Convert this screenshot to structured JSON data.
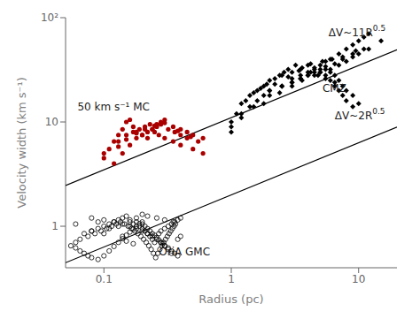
{
  "chart_data": {
    "type": "scatter",
    "xlabel": "Radius (pc)",
    "ylabel": "Velocity width (km s⁻¹)",
    "log": true,
    "grid": false,
    "xlim": [
      0.05,
      20
    ],
    "ylim": [
      0.4,
      100
    ],
    "xticks": [
      0.1,
      1,
      10
    ],
    "yticks": [
      1,
      10,
      {
        "value": 100,
        "label": "10²"
      }
    ],
    "series": [
      {
        "type": "line",
        "color": "#000000",
        "line_style": "solid",
        "x": [
          0.05,
          20
        ],
        "values": [
          2.45967477525,
          49.193495505
        ]
      },
      {
        "type": "line",
        "color": "#000000",
        "line_style": "solid",
        "x": [
          0.05,
          20
        ],
        "values": [
          0.4472135955,
          8.94427191
        ]
      },
      {
        "type": "scatter",
        "marker": "open circle",
        "color": "#000000",
        "x": [
          0.07,
          0.08,
          0.09,
          0.1,
          0.11,
          0.12,
          0.13,
          0.14,
          0.15,
          0.16,
          0.17,
          0.18,
          0.19,
          0.2,
          0.21,
          0.22,
          0.23,
          0.24,
          0.25,
          0.27,
          0.28,
          0.3,
          0.32,
          0.34,
          0.36,
          0.38,
          0.4,
          0.06,
          0.065,
          0.075,
          0.085,
          0.095,
          0.105,
          0.115,
          0.125,
          0.135,
          0.145,
          0.155,
          0.165,
          0.175,
          0.185,
          0.195,
          0.205,
          0.215,
          0.225,
          0.235,
          0.245,
          0.255,
          0.265,
          0.275,
          0.285,
          0.295,
          0.305,
          0.315,
          0.325,
          0.335,
          0.345,
          0.355,
          0.365,
          0.08,
          0.1,
          0.12,
          0.14,
          0.16,
          0.18,
          0.2,
          0.22,
          0.24,
          0.26,
          0.28,
          0.3,
          0.32,
          0.34,
          0.2,
          0.22,
          0.26,
          0.3,
          0.35,
          0.13,
          0.11,
          0.08,
          0.1,
          0.14,
          0.16,
          0.18,
          0.2,
          0.06,
          0.09,
          0.38,
          0.4,
          0.15,
          0.17,
          0.055,
          0.06,
          0.065,
          0.07,
          0.075,
          0.08,
          0.09,
          0.1,
          0.11,
          0.12,
          0.13,
          0.14,
          0.15,
          0.16,
          0.17,
          0.18,
          0.19,
          0.2,
          0.21,
          0.22,
          0.23,
          0.24,
          0.25,
          0.26,
          0.27,
          0.28,
          0.29,
          0.3,
          0.32,
          0.34,
          0.36,
          0.38
        ],
        "values": [
          0.85,
          0.9,
          0.95,
          1.0,
          1.05,
          1.1,
          1.15,
          1.2,
          1.25,
          1.1,
          1.05,
          1.1,
          1.0,
          0.95,
          0.9,
          0.85,
          0.8,
          0.75,
          0.7,
          0.85,
          0.9,
          0.95,
          1.0,
          1.05,
          1.1,
          1.15,
          1.2,
          0.7,
          0.75,
          0.8,
          0.85,
          0.9,
          0.95,
          1.0,
          1.05,
          1.1,
          1.05,
          1.0,
          0.95,
          0.9,
          0.85,
          0.8,
          0.75,
          0.7,
          0.65,
          0.6,
          0.55,
          0.5,
          0.55,
          0.6,
          0.65,
          0.7,
          0.75,
          0.8,
          0.85,
          0.9,
          0.95,
          1.0,
          1.05,
          1.2,
          1.15,
          1.1,
          1.05,
          1.0,
          0.95,
          0.9,
          0.85,
          0.8,
          0.75,
          0.7,
          0.65,
          0.6,
          0.55,
          1.3,
          1.25,
          1.2,
          1.15,
          1.1,
          1.0,
          0.95,
          0.9,
          0.85,
          0.8,
          1.15,
          1.2,
          1.1,
          1.05,
          1.1,
          0.75,
          0.8,
          0.72,
          0.68,
          0.65,
          0.62,
          0.58,
          0.55,
          0.52,
          0.5,
          0.48,
          0.52,
          0.58,
          0.64,
          0.7,
          0.76,
          0.82,
          0.88,
          0.94,
          1.0,
          1.06,
          1.05,
          1.0,
          0.95,
          0.9,
          0.85,
          0.82,
          0.78,
          0.74,
          0.7,
          0.68,
          0.65,
          0.62,
          0.58,
          0.55,
          0.52
        ]
      },
      {
        "type": "scatter",
        "marker": "circle",
        "color": "#aa0000",
        "x": [
          0.1,
          0.12,
          0.13,
          0.14,
          0.15,
          0.16,
          0.17,
          0.18,
          0.2,
          0.22,
          0.24,
          0.26,
          0.28,
          0.3,
          0.35,
          0.4,
          0.45,
          0.5,
          0.6,
          0.1,
          0.11,
          0.13,
          0.15,
          0.17,
          0.19,
          0.21,
          0.23,
          0.25,
          0.27,
          0.3,
          0.35,
          0.4,
          0.5,
          0.6,
          0.12,
          0.14,
          0.16,
          0.18,
          0.2,
          0.22,
          0.24,
          0.26,
          0.28,
          0.32,
          0.36,
          0.4,
          0.45,
          0.55,
          0.13,
          0.15,
          0.18,
          0.21,
          0.25,
          0.3,
          0.38,
          0.48
        ],
        "values": [
          5.0,
          6.5,
          7.5,
          8.5,
          10.0,
          10.5,
          9.0,
          8.0,
          7.5,
          7.0,
          8.5,
          9.5,
          10.0,
          10.5,
          9.0,
          8.5,
          8.0,
          7.5,
          7.0,
          4.5,
          5.5,
          6.5,
          7.5,
          8.0,
          8.5,
          9.0,
          9.5,
          8.0,
          7.5,
          7.0,
          6.5,
          6.0,
          5.5,
          5.0,
          4.0,
          5.0,
          6.0,
          7.0,
          7.5,
          8.0,
          8.5,
          9.0,
          9.5,
          8.5,
          8.0,
          7.5,
          7.0,
          6.5,
          5.8,
          6.8,
          7.8,
          8.5,
          9.2,
          9.8,
          8.2,
          7.2
        ]
      },
      {
        "type": "scatter",
        "marker": "diamond",
        "color": "#000000",
        "x": [
          1.0,
          1.2,
          1.4,
          1.6,
          1.8,
          2.0,
          2.5,
          3.0,
          3.5,
          4.0,
          4.5,
          5.0,
          5.5,
          6.0,
          6.5,
          7.0,
          7.5,
          8.0,
          9.0,
          1.1,
          1.3,
          1.5,
          1.7,
          1.9,
          2.2,
          2.4,
          2.6,
          2.8,
          3.2,
          3.6,
          4.2,
          4.8,
          5.5,
          6.5,
          1.0,
          1.2,
          1.4,
          1.6,
          1.8,
          2.0,
          2.5,
          3.0,
          3.5,
          4.0,
          4.5,
          5.0,
          5.5,
          6.0,
          6.5,
          7.0,
          7.5,
          8.0,
          9.0,
          10.0,
          1.0,
          1.5,
          2.0,
          2.5,
          3.0,
          3.5,
          4.0,
          4.5,
          5.0,
          5.5,
          6.0,
          7.0,
          8.0,
          9.0,
          10.0,
          11.0,
          12.0,
          1.2,
          1.8,
          2.4,
          3.0,
          3.6,
          4.5,
          5.5,
          6.5,
          7.5,
          9.0,
          11.0,
          2.0,
          2.5,
          3.0,
          3.5,
          4.0,
          5.0,
          6.0,
          7.0,
          8.0,
          9.0,
          10.0,
          12.0,
          15.0,
          2.2,
          2.8,
          3.4,
          4.2,
          5.2,
          6.2,
          7.5,
          9.5
        ],
        "values": [
          10.0,
          15.0,
          18.0,
          20.0,
          22.0,
          25.0,
          28.0,
          30.0,
          32.0,
          35.0,
          33.0,
          30.0,
          28.0,
          25.0,
          22.0,
          20.0,
          18.0,
          16.0,
          14.0,
          12.0,
          16.0,
          19.0,
          21.0,
          23.0,
          26.0,
          28.0,
          30.0,
          32.0,
          35.0,
          33.0,
          30.0,
          28.0,
          26.0,
          24.0,
          8.0,
          12.0,
          14.0,
          16.0,
          18.0,
          20.0,
          22.0,
          24.0,
          26.0,
          28.0,
          30.0,
          32.0,
          34.0,
          30.0,
          28.0,
          25.0,
          22.0,
          20.0,
          18.0,
          15.0,
          9.0,
          14.0,
          18.0,
          22.0,
          26.0,
          28.0,
          30.0,
          32.0,
          35.0,
          38.0,
          40.0,
          45.0,
          50.0,
          55.0,
          60.0,
          65.0,
          70.0,
          11.0,
          15.0,
          19.0,
          22.0,
          25.0,
          28.0,
          32.0,
          36.0,
          40.0,
          45.0,
          50.0,
          20.0,
          22.0,
          24.0,
          26.0,
          28.0,
          30.0,
          32.0,
          35.0,
          38.0,
          42.0,
          45.0,
          50.0,
          60.0,
          23.0,
          27.0,
          31.0,
          36.0,
          38.0,
          40.0,
          42.0,
          48.0
        ]
      }
    ],
    "annotations": [
      {
        "text": "ΔV~11R",
        "superscript": "0.5",
        "x": 5.8,
        "y": 72
      },
      {
        "text": "ΔV~2R",
        "superscript": "0.5",
        "x": 6.5,
        "y": 11.5
      },
      {
        "text": "CMZ",
        "x": 5.2,
        "y": 21
      },
      {
        "text": "50 km s⁻¹ MC",
        "x": 0.062,
        "y": 14
      },
      {
        "text": "OriA GMC",
        "x": 0.27,
        "y": 0.57
      }
    ]
  }
}
